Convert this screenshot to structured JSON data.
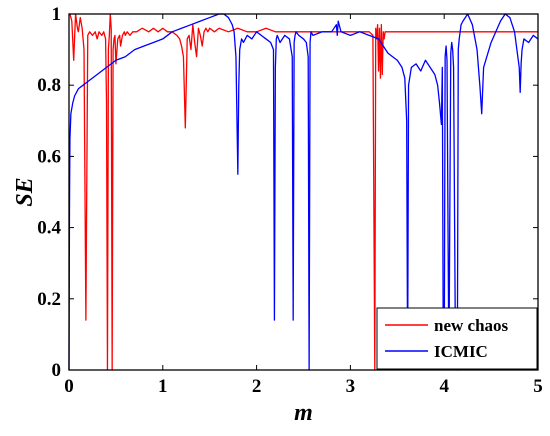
{
  "chart_data": {
    "type": "line",
    "xlabel": "m",
    "ylabel": "SE",
    "xlim": [
      0,
      5
    ],
    "ylim": [
      0,
      1
    ],
    "x_ticks": [
      "0",
      "1",
      "2",
      "3",
      "4",
      "5"
    ],
    "y_ticks": [
      "0",
      "0.2",
      "0.4",
      "0.6",
      "0.8",
      "1"
    ],
    "grid": false,
    "legend_position": "bottom-right",
    "series": [
      {
        "name": "new chaos",
        "color": "#ff0000",
        "x": [
          0,
          0.01,
          0.03,
          0.05,
          0.07,
          0.09,
          0.1,
          0.12,
          0.14,
          0.16,
          0.18,
          0.2,
          0.22,
          0.25,
          0.28,
          0.3,
          0.32,
          0.35,
          0.37,
          0.39,
          0.4,
          0.41,
          0.42,
          0.43,
          0.44,
          0.45,
          0.46,
          0.47,
          0.48,
          0.49,
          0.5,
          0.52,
          0.54,
          0.55,
          0.57,
          0.59,
          0.6,
          0.62,
          0.65,
          0.68,
          0.72,
          0.78,
          0.85,
          0.9,
          0.95,
          1.0,
          1.05,
          1.1,
          1.15,
          1.18,
          1.2,
          1.22,
          1.24,
          1.25,
          1.26,
          1.28,
          1.3,
          1.32,
          1.34,
          1.36,
          1.38,
          1.4,
          1.42,
          1.44,
          1.46,
          1.48,
          1.5,
          1.55,
          1.6,
          1.7,
          1.8,
          1.9,
          2.0,
          2.1,
          2.2,
          2.3,
          2.4,
          2.5,
          2.6,
          2.7,
          2.8,
          2.9,
          3.0,
          3.1,
          3.2,
          3.24,
          3.26,
          3.27,
          3.28,
          3.29,
          3.3,
          3.31,
          3.32,
          3.33,
          3.34,
          3.35,
          3.36,
          3.37,
          3.38,
          3.4,
          3.5,
          3.6,
          3.7,
          3.8,
          3.9,
          4.0,
          4.1,
          4.2,
          4.3,
          4.4,
          4.5,
          4.6,
          4.7,
          4.8,
          4.9,
          5.0
        ],
        "y": [
          1.0,
          1.0,
          0.98,
          0.87,
          1.0,
          0.96,
          0.95,
          0.99,
          0.96,
          0.9,
          0.14,
          0.94,
          0.95,
          0.94,
          0.95,
          0.93,
          0.95,
          0.94,
          0.95,
          0.93,
          0.75,
          0.0,
          0.9,
          0.94,
          1.0,
          0.96,
          0.0,
          0.9,
          0.93,
          0.94,
          0.86,
          0.93,
          0.94,
          0.91,
          0.94,
          0.95,
          0.94,
          0.95,
          0.94,
          0.95,
          0.95,
          0.96,
          0.95,
          0.96,
          0.95,
          0.96,
          0.95,
          0.95,
          0.94,
          0.93,
          0.91,
          0.88,
          0.68,
          0.8,
          0.93,
          0.94,
          0.9,
          0.97,
          0.92,
          0.88,
          0.96,
          0.94,
          0.91,
          0.95,
          0.96,
          0.95,
          0.96,
          0.95,
          0.96,
          0.95,
          0.96,
          0.95,
          0.95,
          0.96,
          0.95,
          0.95,
          0.95,
          0.95,
          0.95,
          0.95,
          0.95,
          0.95,
          0.95,
          0.95,
          0.95,
          0.94,
          0.0,
          0.96,
          0.93,
          0.97,
          0.84,
          0.96,
          0.82,
          0.97,
          0.83,
          0.95,
          0.93,
          0.95,
          0.95,
          0.95,
          0.95,
          0.95,
          0.95,
          0.95,
          0.95,
          0.95,
          0.95,
          0.95,
          0.95,
          0.95,
          0.95,
          0.95,
          0.95,
          0.95,
          0.95,
          0.95
        ]
      },
      {
        "name": "ICMIC",
        "color": "#0000ff",
        "x": [
          0,
          0.005,
          0.01,
          0.02,
          0.04,
          0.06,
          0.1,
          0.15,
          0.2,
          0.3,
          0.4,
          0.5,
          0.6,
          0.7,
          0.8,
          0.9,
          1.0,
          1.1,
          1.2,
          1.3,
          1.4,
          1.5,
          1.6,
          1.65,
          1.7,
          1.72,
          1.74,
          1.76,
          1.78,
          1.8,
          1.81,
          1.82,
          1.84,
          1.86,
          1.9,
          1.95,
          2.0,
          2.05,
          2.1,
          2.15,
          2.18,
          2.19,
          2.2,
          2.21,
          2.22,
          2.25,
          2.3,
          2.35,
          2.38,
          2.39,
          2.4,
          2.41,
          2.42,
          2.45,
          2.5,
          2.53,
          2.55,
          2.56,
          2.57,
          2.58,
          2.6,
          2.7,
          2.8,
          2.85,
          2.86,
          2.87,
          2.9,
          3.0,
          3.1,
          3.2,
          3.3,
          3.35,
          3.4,
          3.45,
          3.5,
          3.55,
          3.58,
          3.6,
          3.61,
          3.62,
          3.65,
          3.7,
          3.75,
          3.8,
          3.85,
          3.9,
          3.93,
          3.95,
          3.97,
          3.98,
          3.99,
          4.0,
          4.01,
          4.02,
          4.03,
          4.05,
          4.07,
          4.08,
          4.09,
          4.1,
          4.12,
          4.14,
          4.15,
          4.16,
          4.17,
          4.18,
          4.2,
          4.25,
          4.3,
          4.35,
          4.38,
          4.4,
          4.42,
          4.5,
          4.6,
          4.65,
          4.7,
          4.75,
          4.8,
          4.81,
          4.82,
          4.83,
          4.85,
          4.9,
          4.95,
          5.0
        ],
        "y": [
          0.0,
          0.45,
          0.65,
          0.72,
          0.75,
          0.77,
          0.79,
          0.8,
          0.81,
          0.83,
          0.85,
          0.87,
          0.88,
          0.9,
          0.91,
          0.92,
          0.93,
          0.95,
          0.96,
          0.97,
          0.98,
          0.99,
          1.0,
          1.0,
          0.99,
          0.98,
          0.97,
          0.95,
          0.88,
          0.55,
          0.8,
          0.9,
          0.93,
          0.92,
          0.94,
          0.93,
          0.95,
          0.94,
          0.93,
          0.92,
          0.9,
          0.14,
          0.85,
          0.93,
          0.94,
          0.92,
          0.94,
          0.93,
          0.88,
          0.14,
          0.92,
          0.94,
          0.95,
          0.94,
          0.93,
          0.92,
          0.88,
          0.0,
          0.92,
          0.95,
          0.94,
          0.95,
          0.95,
          0.97,
          0.94,
          0.98,
          0.95,
          0.94,
          0.95,
          0.94,
          0.93,
          0.91,
          0.89,
          0.88,
          0.87,
          0.85,
          0.82,
          0.7,
          0.0,
          0.8,
          0.85,
          0.86,
          0.84,
          0.87,
          0.85,
          0.83,
          0.8,
          0.75,
          0.69,
          0.85,
          0.05,
          0.0,
          0.88,
          0.91,
          0.87,
          0.0,
          0.89,
          0.92,
          0.9,
          0.85,
          0.05,
          0.0,
          0.9,
          0.93,
          0.95,
          0.97,
          0.98,
          1.0,
          0.97,
          0.9,
          0.8,
          0.72,
          0.85,
          0.92,
          0.98,
          1.0,
          0.99,
          0.95,
          0.85,
          0.78,
          0.86,
          0.9,
          0.93,
          0.92,
          0.94,
          0.93
        ]
      }
    ]
  }
}
